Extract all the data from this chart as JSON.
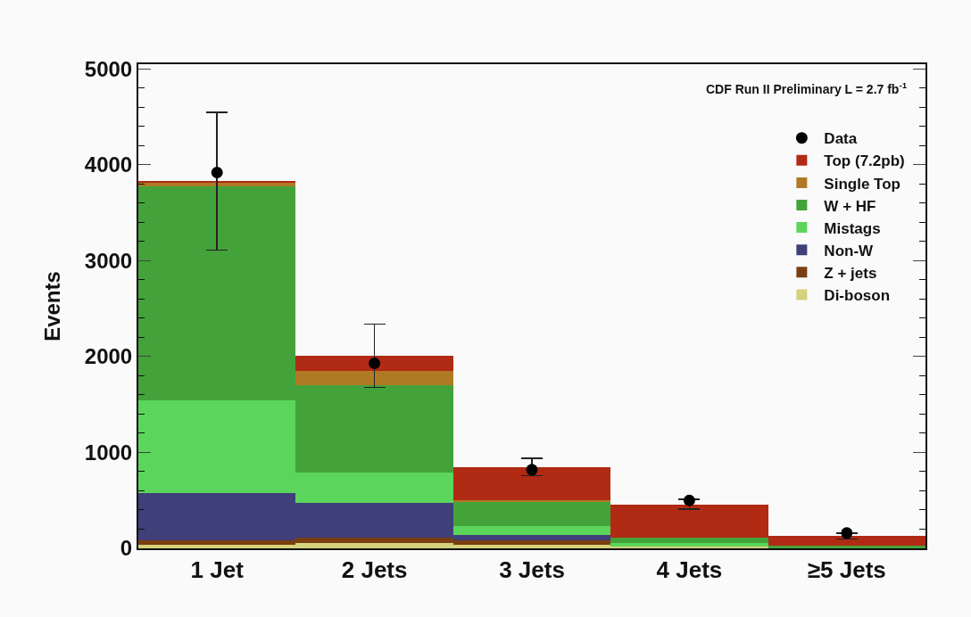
{
  "chart_data": {
    "type": "bar",
    "stacked": true,
    "ylabel": "Events",
    "annotations": [
      "CDF Run II Preliminary L = 2.7 fb$^{-1}$"
    ],
    "categories": [
      "1 Jet",
      "2 Jets",
      "3 Jets",
      "4 Jets",
      "≥5 Jets"
    ],
    "series": [
      {
        "name": "Di-boson",
        "color": "#d4d27a",
        "values": [
          40,
          60,
          40,
          20,
          null
        ]
      },
      {
        "name": "Z + jets",
        "color": "#7a3e10",
        "values": [
          40,
          50,
          40,
          null,
          null
        ]
      },
      {
        "name": "Non-W",
        "color": "#3f3f7a",
        "values": [
          500,
          360,
          60,
          null,
          null
        ]
      },
      {
        "name": "Mistags",
        "color": "#5bd55b",
        "values": [
          960,
          320,
          90,
          40,
          null
        ]
      },
      {
        "name": "W + HF",
        "color": "#44a23a",
        "values": [
          2240,
          910,
          250,
          50,
          30
        ]
      },
      {
        "name": "Single Top",
        "color": "#b07a25",
        "values": [
          30,
          150,
          20,
          null,
          null
        ]
      },
      {
        "name": "Top (7.2pb)",
        "color": "#b02a14",
        "values": [
          20,
          160,
          350,
          350,
          100
        ],
        "errors": [
          720,
          330,
          90,
          50,
          30
        ]
      },
      {
        "name": "Data",
        "type": "scatter",
        "color": "#000000",
        "marker": "circle",
        "values": [
          3920,
          1930,
          820,
          500,
          160
        ]
      }
    ],
    "ylim": [
      0,
      5050
    ],
    "yticks": [
      0,
      1000,
      2000,
      3000,
      4000,
      5000
    ],
    "grid": false,
    "legend": "top right"
  }
}
